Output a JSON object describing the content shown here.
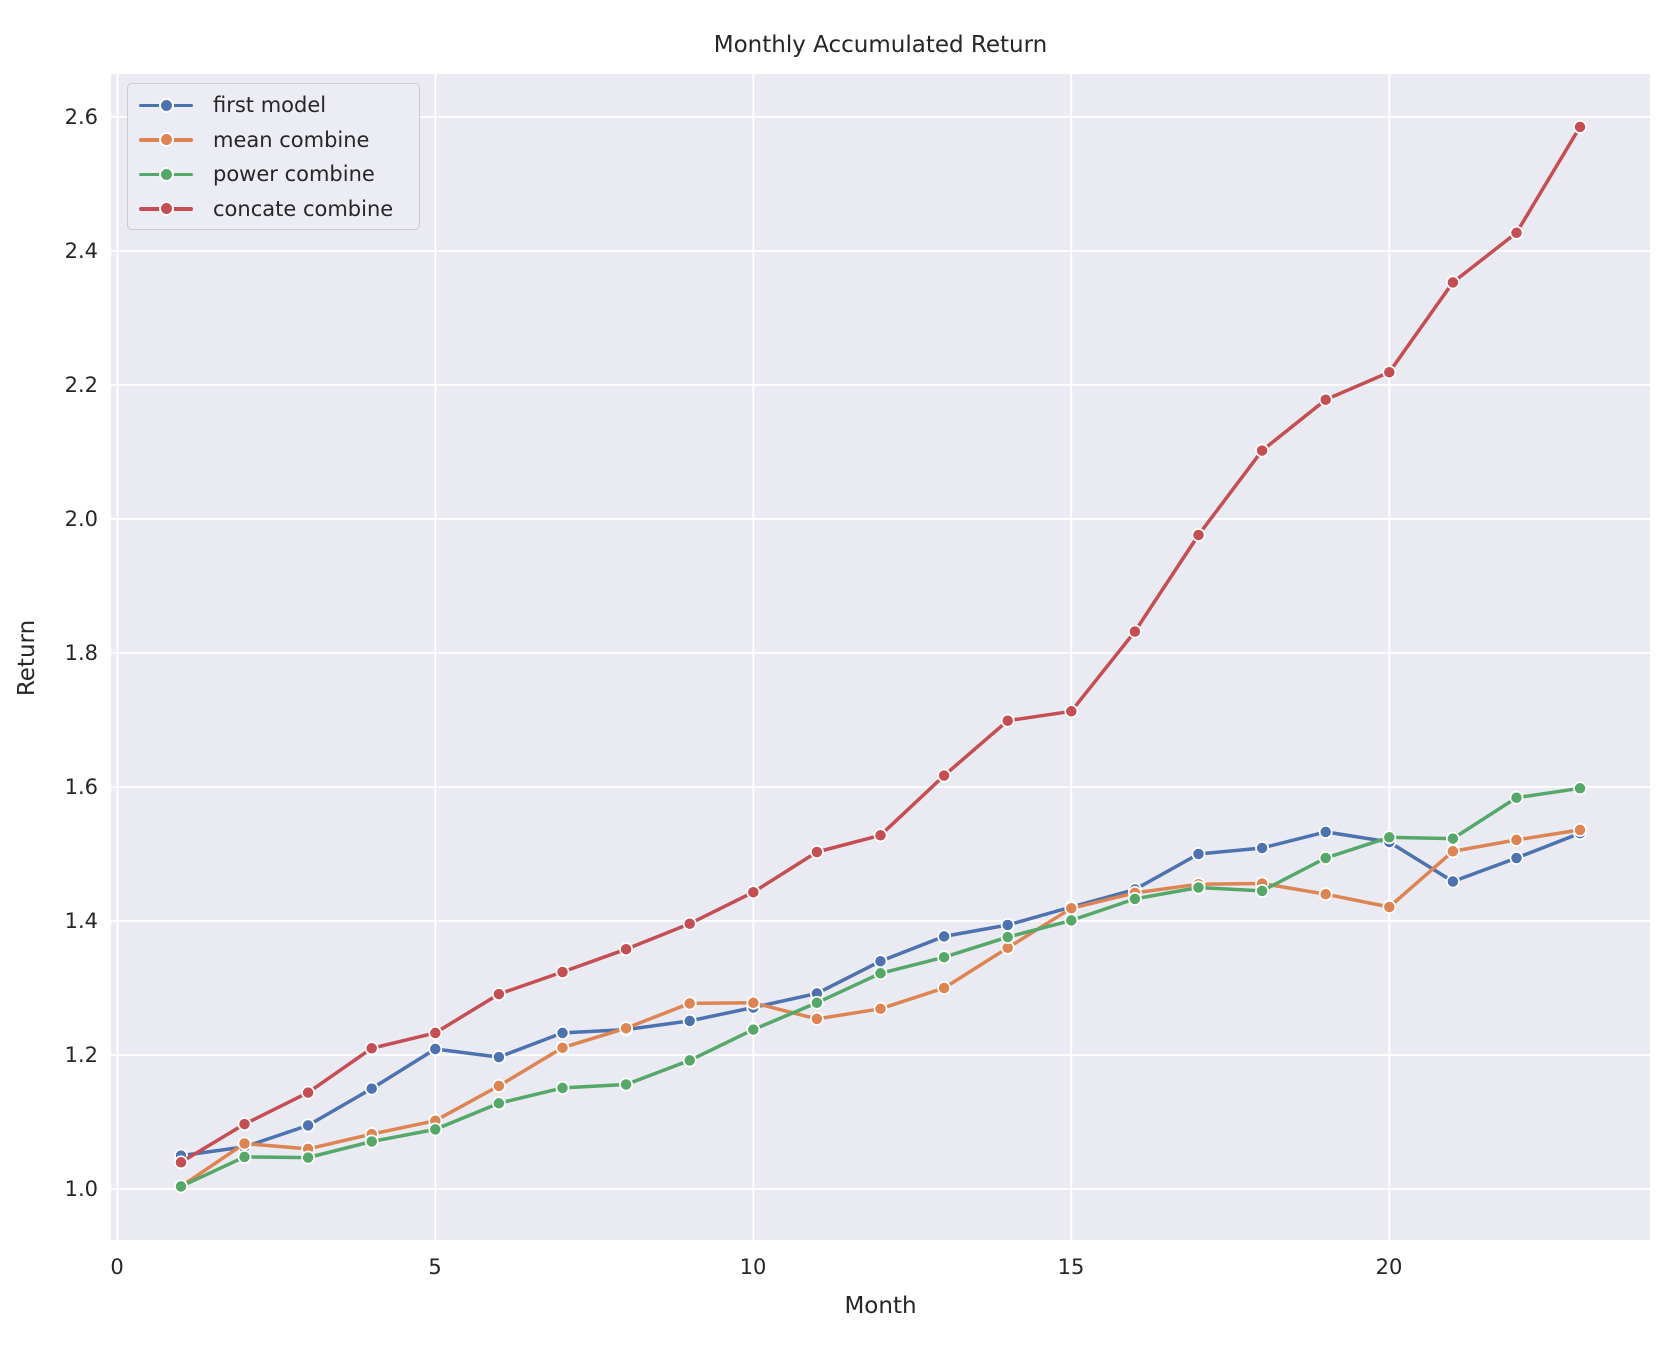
{
  "chart_data": {
    "type": "line",
    "title": "Monthly Accumulated Return",
    "xlabel": "Month",
    "ylabel": "Return",
    "x": [
      1,
      2,
      3,
      4,
      5,
      6,
      7,
      8,
      9,
      10,
      11,
      12,
      13,
      14,
      15,
      16,
      17,
      18,
      19,
      20,
      21,
      22,
      23
    ],
    "series": [
      {
        "name": "first model",
        "color": "#4c72b0",
        "values": [
          1.05,
          1.063,
          1.095,
          1.15,
          1.209,
          1.197,
          1.233,
          1.238,
          1.251,
          1.271,
          1.292,
          1.34,
          1.377,
          1.394,
          1.421,
          1.447,
          1.5,
          1.509,
          1.533,
          1.518,
          1.459,
          1.494,
          1.531
        ]
      },
      {
        "name": "mean combine",
        "color": "#dd8452",
        "values": [
          1.004,
          1.068,
          1.06,
          1.082,
          1.102,
          1.154,
          1.211,
          1.24,
          1.277,
          1.278,
          1.254,
          1.269,
          1.3,
          1.36,
          1.419,
          1.442,
          1.455,
          1.456,
          1.44,
          1.421,
          1.504,
          1.521,
          1.536
        ]
      },
      {
        "name": "power combine",
        "color": "#55a868",
        "values": [
          1.004,
          1.048,
          1.047,
          1.071,
          1.089,
          1.128,
          1.151,
          1.156,
          1.192,
          1.238,
          1.278,
          1.322,
          1.346,
          1.376,
          1.401,
          1.433,
          1.45,
          1.445,
          1.494,
          1.525,
          1.523,
          1.584,
          1.598
        ]
      },
      {
        "name": "concate combine",
        "color": "#c44e52",
        "values": [
          1.04,
          1.097,
          1.144,
          1.21,
          1.233,
          1.291,
          1.324,
          1.358,
          1.396,
          1.443,
          1.503,
          1.528,
          1.617,
          1.699,
          1.713,
          1.832,
          1.976,
          2.102,
          2.178,
          2.219,
          2.353,
          2.427,
          2.585
        ]
      }
    ],
    "xlim": [
      -0.1,
      24.1
    ],
    "ylim": [
      0.924,
      2.664
    ],
    "xticks": [
      0,
      5,
      10,
      15,
      20
    ],
    "yticks": [
      1.0,
      1.2,
      1.4,
      1.6,
      1.8,
      2.0,
      2.2,
      2.4,
      2.6
    ],
    "xtick_labels": [
      "0",
      "5",
      "10",
      "15",
      "20"
    ],
    "ytick_labels": [
      "2.6",
      "2.4",
      "2.2",
      "2.0",
      "1.8",
      "1.6",
      "1.4",
      "1.2",
      "1.0"
    ],
    "grid": true,
    "legend_position": "upper left",
    "plot_bg": "#eaeaf2",
    "grid_color": "#ffffff",
    "text_color": "#262626",
    "line_width": 3.5,
    "marker_radius": 6.1
  }
}
